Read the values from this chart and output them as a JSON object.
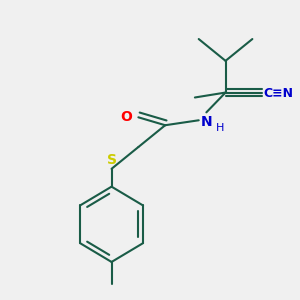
{
  "background_color": "#f0f0f0",
  "bond_color": "#1a5c47",
  "bond_width": 1.5,
  "atom_colors": {
    "O": "#ff0000",
    "N": "#0000cc",
    "S": "#cccc00",
    "C": "#1a5c47",
    "H": "#1a5c47"
  },
  "figsize": [
    3.0,
    3.0
  ],
  "dpi": 100,
  "CN_text_color": "#1a5c47",
  "N_label_color": "#0000cc"
}
